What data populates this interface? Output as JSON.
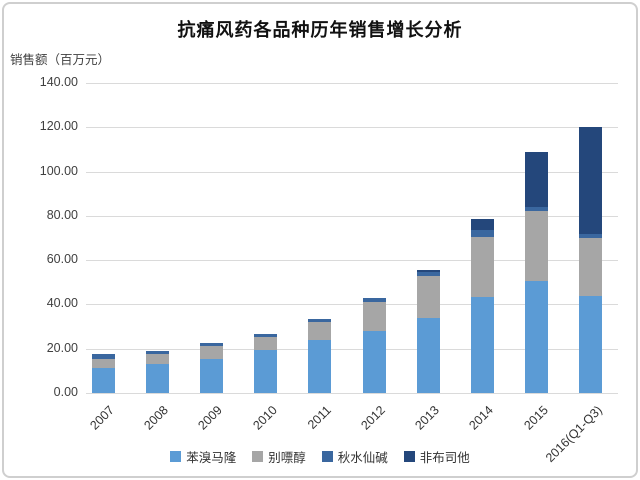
{
  "page": {
    "title": "抗痛风药各品种历年销售增长分析",
    "y_axis_label": "销售额（百万元）"
  },
  "chart_data": {
    "type": "bar",
    "subtype": "stacked-vertical",
    "title": "抗痛风药各品种历年销售增长分析",
    "ylabel": "销售额（百万元）",
    "xlabel": "",
    "categories": [
      "2007",
      "2008",
      "2009",
      "2010",
      "2011",
      "2012",
      "2013",
      "2014",
      "2015",
      "2016(Q1-Q3)"
    ],
    "series": [
      {
        "name": "苯溴马隆",
        "color": "#5B9BD5",
        "values": [
          11.5,
          13.0,
          15.2,
          19.2,
          24.0,
          28.0,
          34.0,
          43.3,
          50.5,
          44.0
        ]
      },
      {
        "name": "别嘌醇",
        "color": "#A6A6A6",
        "values": [
          4.0,
          4.8,
          6.0,
          6.1,
          8.0,
          13.0,
          19.0,
          27.2,
          31.5,
          26.0
        ]
      },
      {
        "name": "秋水仙碱",
        "color": "#3A679F",
        "values": [
          2.0,
          1.2,
          1.4,
          1.4,
          1.5,
          2.0,
          1.5,
          3.0,
          2.0,
          2.0
        ]
      },
      {
        "name": "非布司他",
        "color": "#24477B",
        "values": [
          0,
          0,
          0,
          0,
          0,
          0,
          1.0,
          5.0,
          25.0,
          48.0
        ]
      }
    ],
    "totals": [
      17.5,
      19.0,
      22.6,
      26.7,
      33.5,
      43.0,
      55.5,
      78.5,
      109.0,
      120.0
    ],
    "ylim": [
      0,
      140
    ],
    "ytick_step": 20,
    "y_ticks": [
      "0.00",
      "20.00",
      "40.00",
      "60.00",
      "80.00",
      "100.00",
      "120.00",
      "140.00"
    ],
    "grid": true,
    "legend_position": "bottom"
  }
}
